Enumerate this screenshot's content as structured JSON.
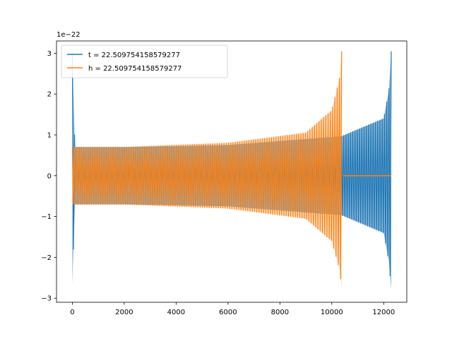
{
  "chart_data": {
    "type": "line",
    "offset_text": "1e−22",
    "xlim": [
      -610,
      12890
    ],
    "ylim": [
      -3.1,
      3.3
    ],
    "x_ticks": [
      0,
      2000,
      4000,
      6000,
      8000,
      10000,
      12000
    ],
    "x_tick_labels": [
      "0",
      "2000",
      "4000",
      "6000",
      "8000",
      "10000",
      "12000"
    ],
    "y_ticks": [
      -3,
      -2,
      -1,
      0,
      1,
      2,
      3
    ],
    "y_tick_labels": [
      "−3",
      "−2",
      "−1",
      "0",
      "1",
      "2",
      "3"
    ],
    "grid": false,
    "legend_position": "upper-left",
    "series": [
      {
        "name": "t = 22.509754158579277",
        "color": "#1f77b4",
        "envelope_points": [
          {
            "x": 0,
            "upper": 3.0,
            "lower": -2.65
          },
          {
            "x": 100,
            "upper": 0.7,
            "lower": -0.7
          },
          {
            "x": 2000,
            "upper": 0.7,
            "lower": -0.7
          },
          {
            "x": 6000,
            "upper": 0.75,
            "lower": -0.75
          },
          {
            "x": 10400,
            "upper": 0.97,
            "lower": -0.97
          },
          {
            "x": 12000,
            "upper": 1.4,
            "lower": -1.4
          },
          {
            "x": 12200,
            "upper": 2.1,
            "lower": -2.1
          },
          {
            "x": 12290,
            "upper": 3.05,
            "lower": -2.78
          }
        ],
        "flat_from_x": 12290,
        "flat_to_x": 12290
      },
      {
        "name": "h = 22.509754158579277",
        "color": "#ff7f0e",
        "envelope_points": [
          {
            "x": 0,
            "upper": 0.7,
            "lower": -0.7
          },
          {
            "x": 2000,
            "upper": 0.7,
            "lower": -0.7
          },
          {
            "x": 6000,
            "upper": 0.8,
            "lower": -0.8
          },
          {
            "x": 9000,
            "upper": 1.05,
            "lower": -1.05
          },
          {
            "x": 10000,
            "upper": 1.6,
            "lower": -1.6
          },
          {
            "x": 10300,
            "upper": 2.4,
            "lower": -2.3
          },
          {
            "x": 10380,
            "upper": 3.05,
            "lower": -2.78
          }
        ],
        "flat_from_x": 10430,
        "flat_to_x": 12290
      }
    ]
  }
}
